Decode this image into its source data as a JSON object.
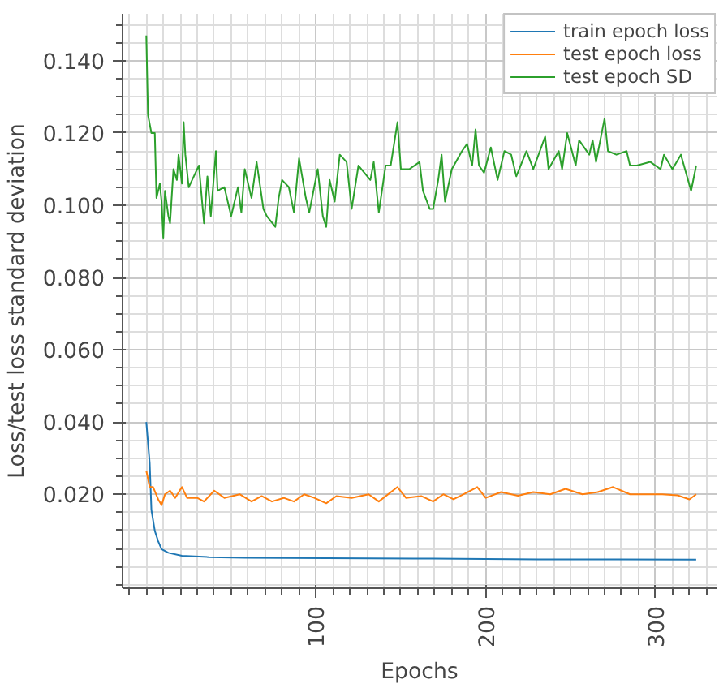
{
  "chart_data": {
    "type": "line",
    "xlabel": "Epochs",
    "ylabel": "Loss/test loss standard deviation",
    "xlim": [
      -14,
      336
    ],
    "ylim": [
      -0.006,
      0.153
    ],
    "xticks": [
      100,
      200,
      300
    ],
    "yticks": [
      {
        "value": 0.02,
        "label": "0.020"
      },
      {
        "value": 0.04,
        "label": "0.040"
      },
      {
        "value": 0.06,
        "label": "0.060"
      },
      {
        "value": 0.08,
        "label": "0.080"
      },
      {
        "value": 0.1,
        "label": "0.100"
      },
      {
        "value": 0.12,
        "label": "0.120"
      },
      {
        "value": 0.14,
        "label": "0.140"
      }
    ],
    "grid": true,
    "legend": "top right",
    "line_style": "solid",
    "marker": "none",
    "series": [
      {
        "name": "train epoch loss",
        "color": "#1f77b4",
        "x": [
          0,
          2,
          3,
          5,
          7,
          9,
          13,
          21,
          37,
          58,
          106,
          169,
          231,
          324
        ],
        "values": [
          0.04,
          0.0287,
          0.0157,
          0.0099,
          0.007,
          0.0048,
          0.0038,
          0.003,
          0.0026,
          0.0024,
          0.0023,
          0.0022,
          0.002,
          0.0019
        ]
      },
      {
        "name": "test epoch loss",
        "color": "#ff7f0e",
        "x": [
          0,
          2,
          4,
          7,
          9,
          11,
          14,
          17,
          21,
          24,
          30,
          34,
          40,
          46,
          55,
          62,
          68,
          74,
          81,
          87,
          93,
          99,
          106,
          112,
          121,
          131,
          137,
          148,
          153,
          162,
          169,
          175,
          181,
          187,
          195,
          200,
          209,
          219,
          228,
          238,
          247,
          257,
          266,
          275,
          285,
          294,
          304,
          313,
          320,
          324
        ],
        "values": [
          0.0265,
          0.022,
          0.022,
          0.0186,
          0.017,
          0.02,
          0.021,
          0.019,
          0.022,
          0.019,
          0.019,
          0.018,
          0.021,
          0.019,
          0.02,
          0.018,
          0.0195,
          0.018,
          0.019,
          0.018,
          0.02,
          0.019,
          0.0175,
          0.0195,
          0.019,
          0.02,
          0.018,
          0.022,
          0.019,
          0.0195,
          0.018,
          0.02,
          0.0186,
          0.02,
          0.022,
          0.019,
          0.0206,
          0.0196,
          0.0206,
          0.02,
          0.0215,
          0.02,
          0.0206,
          0.022,
          0.02,
          0.02,
          0.02,
          0.0197,
          0.0186,
          0.02
        ]
      },
      {
        "name": "test epoch SD",
        "color": "#2ca02c",
        "x": [
          0,
          1,
          3,
          5,
          6,
          8,
          9,
          10,
          11,
          13,
          14,
          16,
          18,
          19,
          21,
          22,
          23,
          25,
          27,
          31,
          34,
          36,
          38,
          41,
          42,
          46,
          50,
          54,
          56,
          58,
          62,
          65,
          69,
          71,
          76,
          78,
          80,
          84,
          87,
          90,
          94,
          96,
          101,
          104,
          106,
          108,
          111,
          114,
          118,
          121,
          125,
          132,
          134,
          137,
          141,
          144,
          148,
          150,
          155,
          161,
          163,
          167,
          169,
          172,
          174,
          176,
          180,
          186,
          189,
          192,
          194,
          196,
          199,
          203,
          207,
          211,
          215,
          218,
          224,
          228,
          235,
          237,
          243,
          245,
          248,
          253,
          255,
          261,
          263,
          265,
          270,
          272,
          277,
          283,
          285,
          289,
          297,
          303,
          305,
          310,
          315,
          321,
          324
        ],
        "values": [
          0.147,
          0.125,
          0.12,
          0.12,
          0.102,
          0.106,
          0.101,
          0.091,
          0.104,
          0.097,
          0.095,
          0.11,
          0.107,
          0.114,
          0.106,
          0.123,
          0.114,
          0.105,
          0.107,
          0.111,
          0.095,
          0.108,
          0.097,
          0.115,
          0.104,
          0.105,
          0.097,
          0.105,
          0.098,
          0.11,
          0.102,
          0.112,
          0.099,
          0.097,
          0.094,
          0.102,
          0.107,
          0.105,
          0.098,
          0.113,
          0.102,
          0.098,
          0.11,
          0.097,
          0.094,
          0.107,
          0.101,
          0.114,
          0.112,
          0.099,
          0.111,
          0.107,
          0.112,
          0.098,
          0.111,
          0.111,
          0.123,
          0.11,
          0.11,
          0.112,
          0.104,
          0.099,
          0.099,
          0.107,
          0.114,
          0.101,
          0.11,
          0.115,
          0.117,
          0.111,
          0.121,
          0.111,
          0.109,
          0.116,
          0.107,
          0.115,
          0.114,
          0.108,
          0.115,
          0.11,
          0.119,
          0.11,
          0.115,
          0.11,
          0.12,
          0.111,
          0.118,
          0.114,
          0.118,
          0.112,
          0.124,
          0.115,
          0.114,
          0.115,
          0.111,
          0.111,
          0.112,
          0.11,
          0.114,
          0.11,
          0.114,
          0.104,
          0.111
        ]
      }
    ]
  }
}
